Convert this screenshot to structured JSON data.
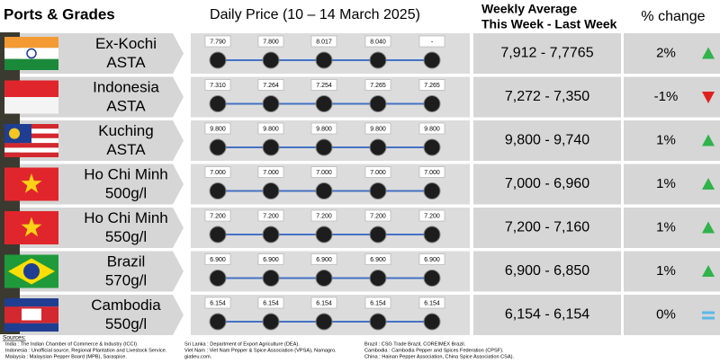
{
  "header": {
    "ports": "Ports & Grades",
    "daily": "Daily Price (10 – 14 March 2025)",
    "weekly_line1": "Weekly Average",
    "weekly_line2": "This Week - Last Week",
    "change": "% change"
  },
  "rows": [
    {
      "port": "Ex-Kochi",
      "grade": "ASTA",
      "daily": [
        "7.790",
        "7.800",
        "8.017",
        "8.040",
        "-"
      ],
      "weekly": "7,912 - 7,7765",
      "change": "2%"
    },
    {
      "port": "Indonesia",
      "grade": "ASTA",
      "daily": [
        "7.310",
        "7.264",
        "7.254",
        "7.265",
        "7.265"
      ],
      "weekly": "7,272 - 7,350",
      "change": "-1%"
    },
    {
      "port": "Kuching",
      "grade": "ASTA",
      "daily": [
        "9.800",
        "9.800",
        "9.800",
        "9.800",
        "9.800"
      ],
      "weekly": "9,800 - 9,740",
      "change": "1%"
    },
    {
      "port": "Ho Chi Minh",
      "grade": "500g/l",
      "daily": [
        "7.000",
        "7.000",
        "7.000",
        "7.000",
        "7.000"
      ],
      "weekly": "7,000 - 6,960",
      "change": "1%"
    },
    {
      "port": "Ho Chi Minh",
      "grade": "550g/l",
      "daily": [
        "7.200",
        "7.200",
        "7.200",
        "7.200",
        "7.200"
      ],
      "weekly": "7,200 - 7,160",
      "change": "1%"
    },
    {
      "port": "Brazil",
      "grade": "570g/l",
      "daily": [
        "6.900",
        "6.900",
        "6.900",
        "6.900",
        "6.900"
      ],
      "weekly": "6,900 - 6,850",
      "change": "1%"
    },
    {
      "port": "Cambodia",
      "grade": "550g/l",
      "daily": [
        "6.154",
        "6.154",
        "6.154",
        "6.154",
        "6.154"
      ],
      "weekly": "6,154 - 6,154",
      "change": "0%"
    }
  ],
  "sources": {
    "heading": "Sources:",
    "columns": [
      [
        "India : The Indian Chamber of Commerce & Industry (ICCI)",
        "Indonesia : Unofficial source, Regional Plantation and Livestock Service.",
        "Malaysia : Malaysian Pepper Board (MPB), Saraspice."
      ],
      [
        "Sri Lanka : Department of Export Agriculture (DEA).",
        "Viet Nam : Viet Nam Pepper & Spice Association (VPSA), Namagro.",
        "giatieu.com."
      ],
      [
        "Brazil : CSG Trade Brazil, COREIMEX Brazil.",
        "Cambodia : Cambodia Pepper and Spices Federation (CPSF).",
        "China : Hainan Pepper Association, China Spice Association CSA)."
      ]
    ]
  }
}
